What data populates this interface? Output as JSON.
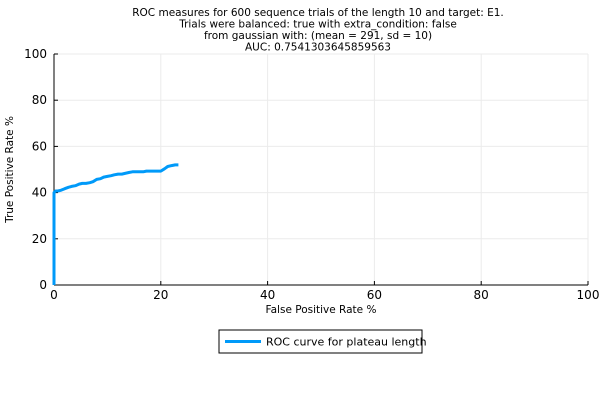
{
  "chart_data": {
    "type": "line",
    "title_lines": [
      "ROC measures for 600 sequence trials of the length 10 and target: E1.",
      "Trials were balanced: true with extra_condition: false",
      "from gaussian with: (mean = 291, sd = 10)",
      "AUC: 0.7541303645859563"
    ],
    "xlabel": "False Positive Rate %",
    "ylabel": "True Positive Rate %",
    "xlim": [
      0,
      100
    ],
    "ylim": [
      0,
      100
    ],
    "xticks": [
      0,
      20,
      40,
      60,
      80,
      100
    ],
    "yticks": [
      0,
      20,
      40,
      60,
      80,
      100
    ],
    "grid": true,
    "legend_position": "bottom",
    "series": [
      {
        "name": "ROC curve for plateau length",
        "color": "#009af9",
        "x": [
          0,
          0,
          0.3,
          0.7,
          1.3,
          2.0,
          2.7,
          3.3,
          4.0,
          4.7,
          5.3,
          6.0,
          6.7,
          7.3,
          8.0,
          8.7,
          9.3,
          10.0,
          10.7,
          11.3,
          12.0,
          12.7,
          13.3,
          14.0,
          14.7,
          15.3,
          16.0,
          16.7,
          17.3,
          18.0,
          18.7,
          19.3,
          20.0,
          20.7,
          21.3,
          22.0,
          22.7,
          23.3
        ],
        "y": [
          0,
          40.0,
          40.7,
          40.7,
          41.0,
          41.7,
          42.3,
          42.7,
          43.0,
          43.7,
          44.0,
          44.0,
          44.3,
          44.7,
          45.7,
          46.0,
          46.7,
          47.0,
          47.3,
          47.7,
          48.0,
          48.0,
          48.3,
          48.7,
          49.0,
          49.0,
          49.0,
          49.0,
          49.3,
          49.3,
          49.3,
          49.3,
          49.3,
          50.3,
          51.3,
          51.7,
          52.0,
          52.0
        ]
      }
    ]
  }
}
